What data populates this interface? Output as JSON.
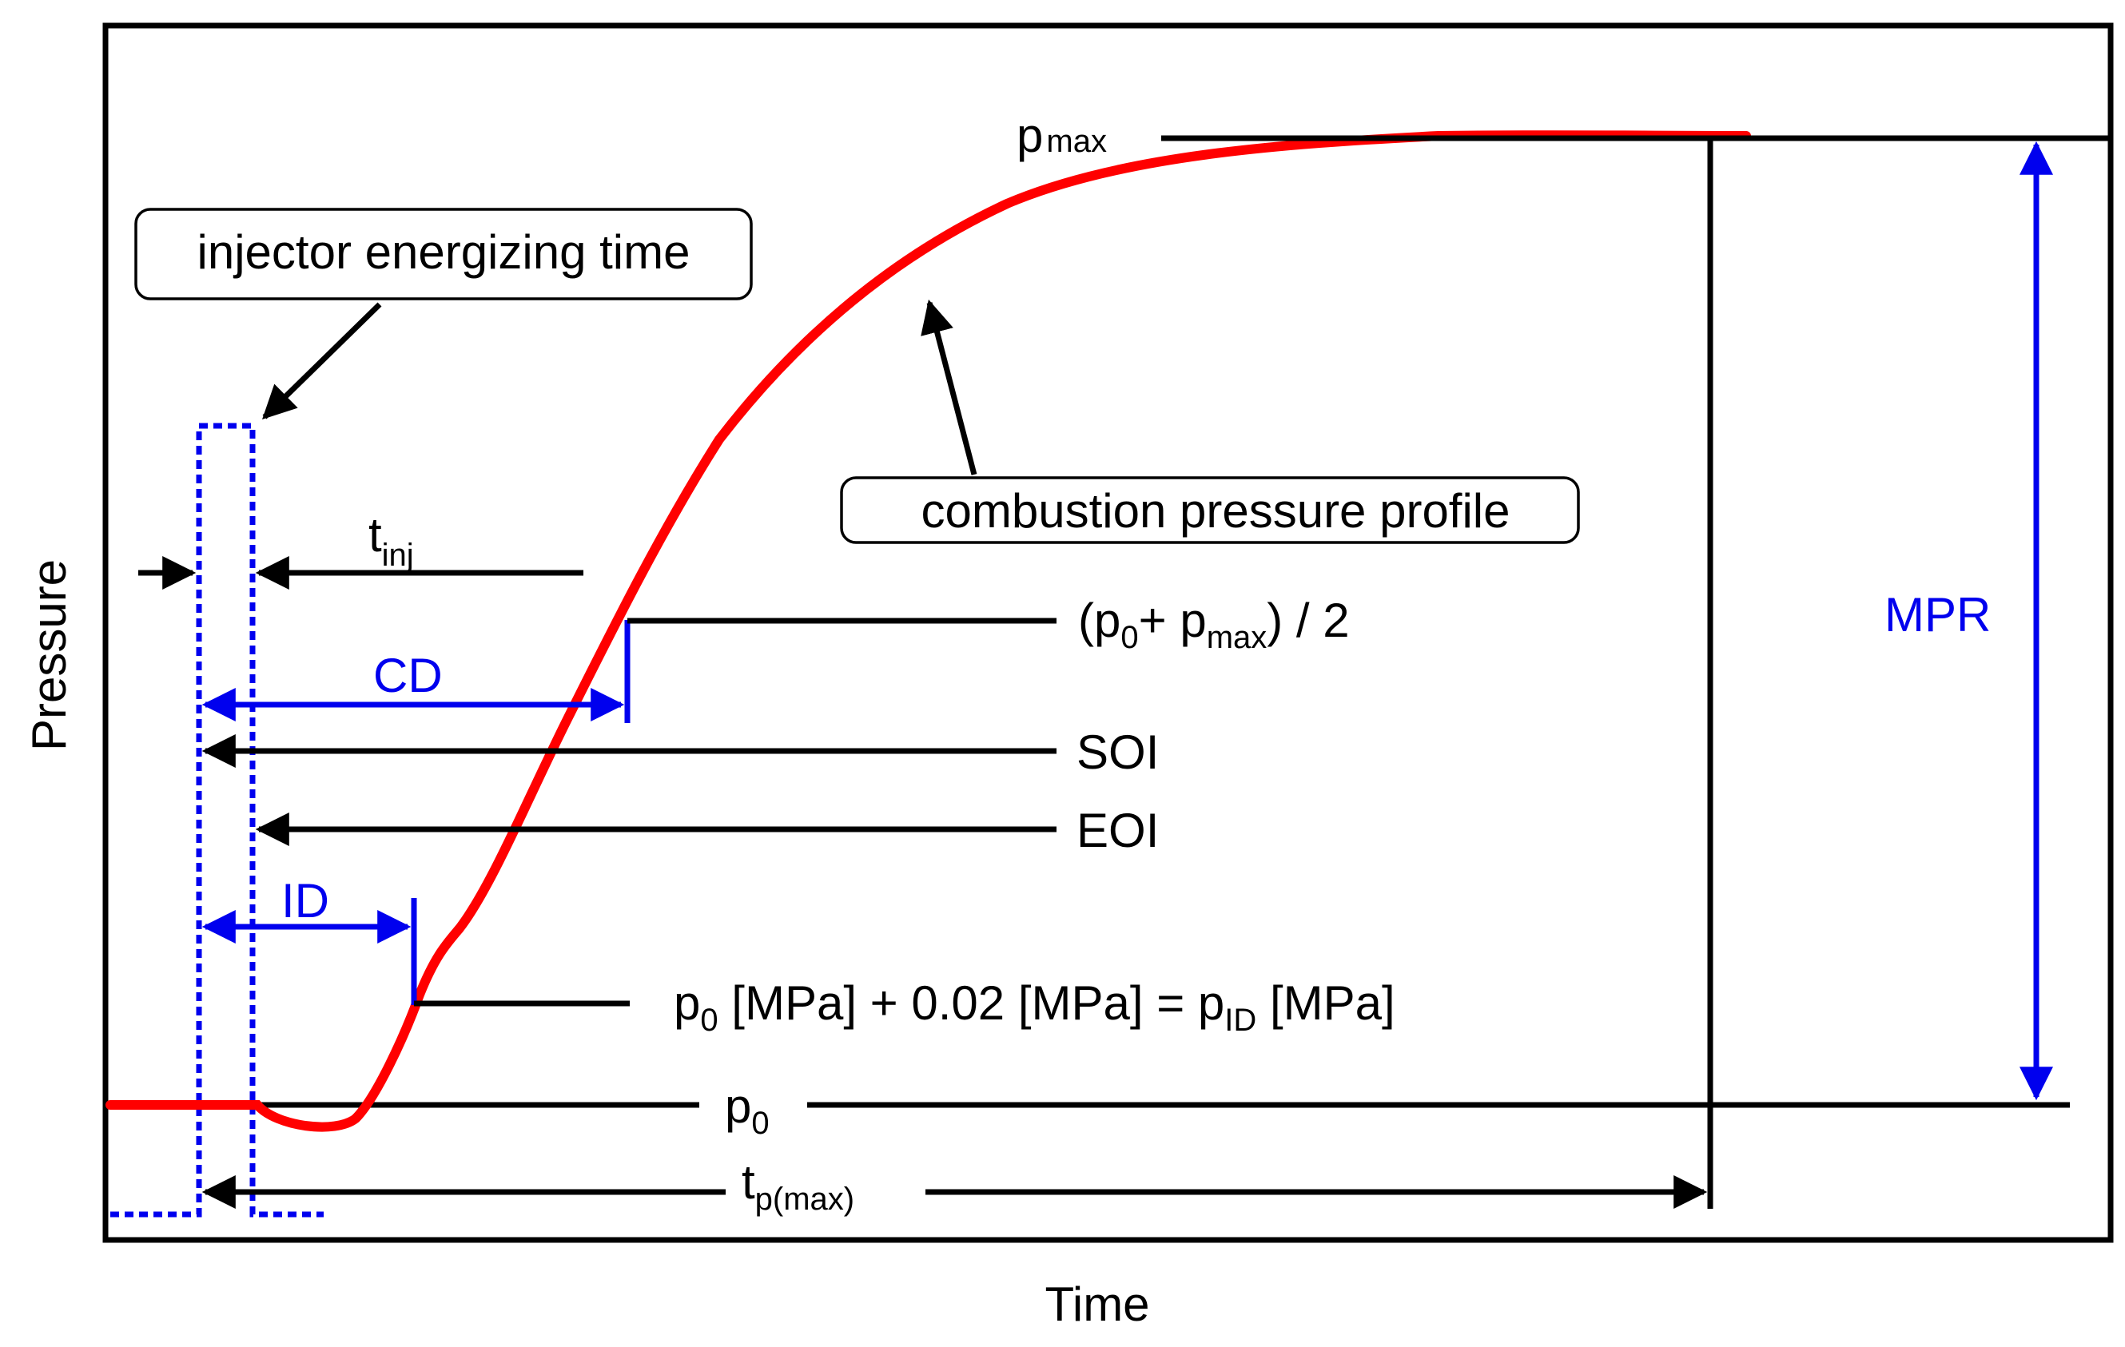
{
  "axes": {
    "x_label": "Time",
    "y_label": "Pressure"
  },
  "callouts": {
    "injector": "injector energizing time",
    "combustion": "combustion pressure profile"
  },
  "labels": {
    "p_max_main": "p",
    "p_max_sub": "max",
    "t_inj_main": "t",
    "t_inj_sub": "inj",
    "half_open": "(p",
    "half_0": "0",
    "half_plus": "+ p",
    "half_max": "max",
    "half_close": ") / 2",
    "soi": "SOI",
    "eoi": "EOI",
    "cd": "CD",
    "id": "ID",
    "mpr": "MPR",
    "pid_p": "p",
    "pid_0": "0",
    "pid_mid": " [MPa] + 0.02 [MPa] = p",
    "pid_sub": "ID",
    "pid_end": " [MPa]",
    "p0_main": "p",
    "p0_sub": "0",
    "tp_main": "t",
    "tp_sub": "p(max)"
  },
  "colors": {
    "curve": "#ff0000",
    "annotation": "#0000ee",
    "line": "#000000"
  }
}
